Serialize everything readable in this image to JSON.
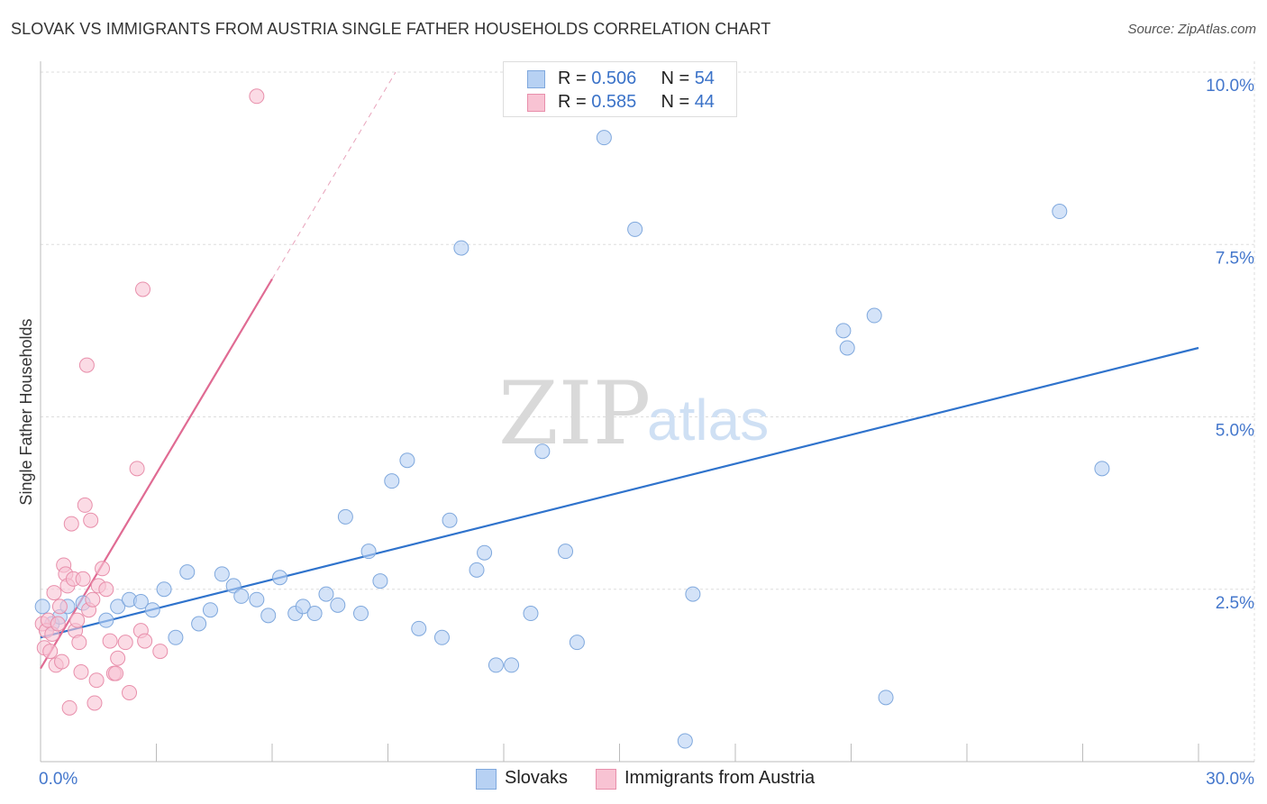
{
  "title": "SLOVAK VS IMMIGRANTS FROM AUSTRIA SINGLE FATHER HOUSEHOLDS CORRELATION CHART",
  "source": "Source: ZipAtlas.com",
  "watermark": {
    "zip": "ZIP",
    "atlas": "atlas"
  },
  "legend": {
    "rows": [
      {
        "r_label": "R = ",
        "r_value": "0.506",
        "n_label": "N = ",
        "n_value": "54"
      },
      {
        "r_label": "R = ",
        "r_value": "0.585",
        "n_label": "N = ",
        "n_value": "44"
      }
    ]
  },
  "bottom_legend": {
    "series1": "Slovaks",
    "series2": "Immigrants from Austria"
  },
  "colors": {
    "blue_fill": "#b7d1f3",
    "blue_stroke": "#7fa8dd",
    "blue_line": "#2f73cc",
    "pink_fill": "#f8c3d3",
    "pink_stroke": "#e88fab",
    "pink_line": "#e06b93",
    "grid": "#dddddd",
    "tick_text": "#4477cc"
  },
  "chart_data": {
    "type": "scatter",
    "title": "SLOVAK VS IMMIGRANTS FROM AUSTRIA SINGLE FATHER HOUSEHOLDS CORRELATION CHART",
    "xlabel": "",
    "ylabel": "Single Father Households",
    "xlim": [
      0,
      30
    ],
    "ylim": [
      0,
      10
    ],
    "x_tick_labels": [
      "0.0%",
      "30.0%"
    ],
    "y_tick_values": [
      2.5,
      5.0,
      7.5,
      10.0
    ],
    "y_tick_labels": [
      "2.5%",
      "5.0%",
      "7.5%",
      "10.0%"
    ],
    "grid": true,
    "series": [
      {
        "name": "Slovaks",
        "R": 0.506,
        "N": 54,
        "trend": {
          "x": [
            0.0,
            30.0
          ],
          "y": [
            1.8,
            6.0
          ],
          "dashed_extension": false
        },
        "points": [
          [
            0.05,
            2.25
          ],
          [
            0.3,
            2.0
          ],
          [
            0.5,
            2.1
          ],
          [
            0.7,
            2.25
          ],
          [
            1.1,
            2.3
          ],
          [
            1.7,
            2.05
          ],
          [
            2.0,
            2.25
          ],
          [
            2.3,
            2.35
          ],
          [
            2.6,
            2.32
          ],
          [
            2.9,
            2.2
          ],
          [
            3.2,
            2.5
          ],
          [
            3.5,
            1.8
          ],
          [
            3.8,
            2.75
          ],
          [
            4.1,
            2.0
          ],
          [
            4.4,
            2.2
          ],
          [
            4.7,
            2.72
          ],
          [
            5.0,
            2.55
          ],
          [
            5.2,
            2.4
          ],
          [
            5.6,
            2.35
          ],
          [
            5.9,
            2.12
          ],
          [
            6.2,
            2.67
          ],
          [
            6.6,
            2.15
          ],
          [
            6.8,
            2.25
          ],
          [
            7.1,
            2.15
          ],
          [
            7.4,
            2.43
          ],
          [
            7.7,
            2.27
          ],
          [
            7.9,
            3.55
          ],
          [
            8.3,
            2.15
          ],
          [
            8.5,
            3.05
          ],
          [
            8.8,
            2.62
          ],
          [
            9.1,
            4.07
          ],
          [
            9.5,
            4.37
          ],
          [
            9.8,
            1.93
          ],
          [
            10.4,
            1.8
          ],
          [
            10.6,
            3.5
          ],
          [
            10.9,
            7.45
          ],
          [
            11.3,
            2.78
          ],
          [
            11.5,
            3.03
          ],
          [
            11.8,
            1.4
          ],
          [
            12.2,
            1.4
          ],
          [
            12.7,
            2.15
          ],
          [
            13.0,
            4.5
          ],
          [
            13.6,
            3.05
          ],
          [
            13.9,
            1.73
          ],
          [
            14.6,
            9.05
          ],
          [
            15.4,
            7.72
          ],
          [
            16.7,
            0.3
          ],
          [
            16.9,
            2.43
          ],
          [
            20.8,
            6.25
          ],
          [
            20.9,
            6.0
          ],
          [
            21.6,
            6.47
          ],
          [
            21.9,
            0.93
          ],
          [
            26.4,
            7.98
          ],
          [
            27.5,
            4.25
          ]
        ]
      },
      {
        "name": "Immigrants from Austria",
        "R": 0.585,
        "N": 44,
        "trend": {
          "x": [
            0.0,
            6.0
          ],
          "y": [
            1.35,
            7.0
          ],
          "dashed_extension": true,
          "dashed_to": [
            9.2,
            10.0
          ]
        },
        "points": [
          [
            0.05,
            2.0
          ],
          [
            0.1,
            1.65
          ],
          [
            0.15,
            1.9
          ],
          [
            0.2,
            2.05
          ],
          [
            0.25,
            1.6
          ],
          [
            0.3,
            1.85
          ],
          [
            0.35,
            2.45
          ],
          [
            0.4,
            1.4
          ],
          [
            0.45,
            2.0
          ],
          [
            0.5,
            2.25
          ],
          [
            0.55,
            1.45
          ],
          [
            0.6,
            2.85
          ],
          [
            0.65,
            2.72
          ],
          [
            0.7,
            2.55
          ],
          [
            0.75,
            0.78
          ],
          [
            0.8,
            3.45
          ],
          [
            0.85,
            2.65
          ],
          [
            0.9,
            1.9
          ],
          [
            0.95,
            2.05
          ],
          [
            1.0,
            1.73
          ],
          [
            1.05,
            1.3
          ],
          [
            1.1,
            2.65
          ],
          [
            1.15,
            3.72
          ],
          [
            1.2,
            5.75
          ],
          [
            1.25,
            2.2
          ],
          [
            1.3,
            3.5
          ],
          [
            1.35,
            2.35
          ],
          [
            1.4,
            0.85
          ],
          [
            1.45,
            1.18
          ],
          [
            1.5,
            2.55
          ],
          [
            1.6,
            2.8
          ],
          [
            1.7,
            2.5
          ],
          [
            1.8,
            1.75
          ],
          [
            1.9,
            1.28
          ],
          [
            2.0,
            1.5
          ],
          [
            1.95,
            1.28
          ],
          [
            2.3,
            1.0
          ],
          [
            2.5,
            4.25
          ],
          [
            2.6,
            1.9
          ],
          [
            2.65,
            6.85
          ],
          [
            2.7,
            1.75
          ],
          [
            3.1,
            1.6
          ],
          [
            5.6,
            9.65
          ],
          [
            2.2,
            1.73
          ]
        ]
      }
    ]
  }
}
